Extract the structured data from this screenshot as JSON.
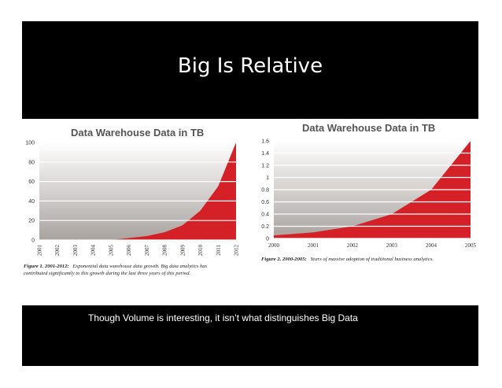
{
  "slide": {
    "title": "Big Is Relative",
    "subtitle": "Though Volume is interesting, it isn’t what distinguishes Big Data"
  },
  "colors": {
    "background": "#000000",
    "area_fill": "#d42027",
    "title_text": "#ffffff",
    "chart_title": "#555555"
  },
  "chart_data": [
    {
      "type": "area",
      "title": "Data Warehouse Data in TB",
      "x": [
        "2001",
        "2002",
        "2003",
        "2004",
        "2005",
        "2006",
        "2007",
        "2008",
        "2009",
        "2010",
        "2011",
        "2012"
      ],
      "values": [
        0,
        0,
        0,
        0,
        0,
        2,
        4,
        8,
        15,
        30,
        55,
        100
      ],
      "ylim": [
        0,
        100
      ],
      "yticks": [
        "0",
        "20",
        "40",
        "60",
        "80",
        "100"
      ],
      "ytick_values": [
        0,
        20,
        40,
        60,
        80,
        100
      ],
      "xlabel": "",
      "ylabel": "",
      "grid": true,
      "caption_label": "Figure 1. 2001-2012:",
      "caption_line1": "Exponential data warehouse data growth. Big data analytics has",
      "caption_line2": "contributed significantly to this growth during the last three years of this period.",
      "x_tick_rotation": "vertical"
    },
    {
      "type": "area",
      "title": "Data Warehouse Data in TB",
      "x": [
        "2000",
        "2001",
        "2002",
        "2003",
        "2004",
        "2005"
      ],
      "values": [
        0.05,
        0.1,
        0.2,
        0.4,
        0.8,
        1.6
      ],
      "ylim": [
        0,
        1.6
      ],
      "yticks": [
        "0",
        "0.2",
        "0.4",
        "0.6",
        "0.8",
        "1",
        "1.2",
        "1.4",
        "1.6"
      ],
      "ytick_values": [
        0,
        0.2,
        0.4,
        0.6,
        0.8,
        1.0,
        1.2,
        1.4,
        1.6
      ],
      "xlabel": "",
      "ylabel": "",
      "grid": true,
      "caption_label": "Figure 2. 2000-2005:",
      "caption_line1": "Years of massive adoption of traditional business analytics.",
      "caption_line2": "",
      "x_tick_rotation": "horizontal"
    }
  ]
}
